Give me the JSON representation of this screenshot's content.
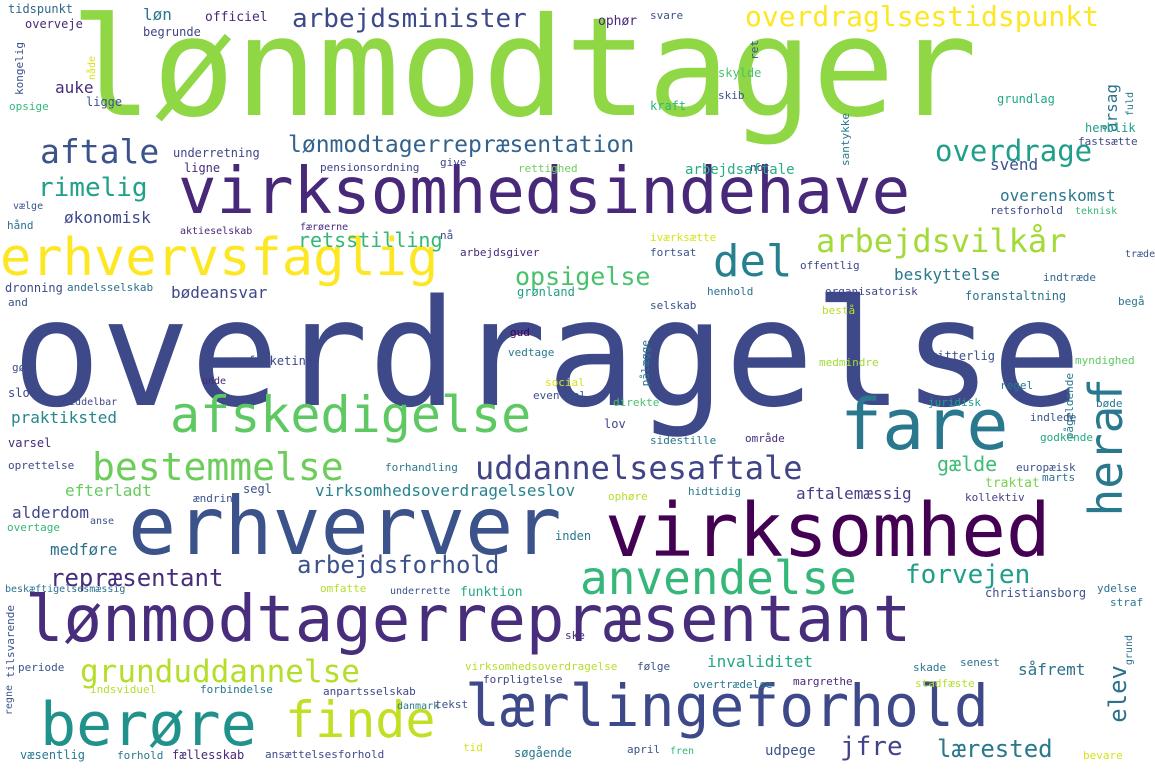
{
  "words": [
    {
      "text": "lønmodtager",
      "color": "#8fd744"
    },
    {
      "text": "overdragelse",
      "color": "#3e4989"
    },
    {
      "text": "virksomhedsindehave",
      "color": "#482878"
    },
    {
      "text": "lønmodtagerrepræsentant",
      "color": "#472d7b"
    },
    {
      "text": "erhverver",
      "color": "#3b528b"
    },
    {
      "text": "virksomhed",
      "color": "#440154"
    },
    {
      "text": "lærlingeforhold",
      "color": "#3e4989"
    },
    {
      "text": "erhvervsfaglig",
      "color": "#fde725"
    },
    {
      "text": "afskedigelse",
      "color": "#5ec962"
    },
    {
      "text": "berøre",
      "color": "#21918c"
    },
    {
      "text": "fare",
      "color": "#2a788e"
    },
    {
      "text": "finde",
      "color": "#c2df23"
    },
    {
      "text": "bestemmelse",
      "color": "#6ccd5a"
    },
    {
      "text": "anvendelse",
      "color": "#35b779"
    },
    {
      "text": "uddannelsesaftale",
      "color": "#414487"
    },
    {
      "text": "heraf",
      "color": "#2a788e"
    },
    {
      "text": "del",
      "color": "#27808e"
    },
    {
      "text": "arbejdsvilkår",
      "color": "#a2da37"
    },
    {
      "text": "overdraglsestidspunkt",
      "color": "#fde725"
    },
    {
      "text": "arbejdsminister",
      "color": "#3e4989"
    },
    {
      "text": "aftale",
      "color": "#3b528b"
    },
    {
      "text": "lønmodtagerrepræsentation",
      "color": "#33638d"
    },
    {
      "text": "overdrage",
      "color": "#1f9e89"
    },
    {
      "text": "rimelig",
      "color": "#1fa188"
    },
    {
      "text": "grunduddannelse",
      "color": "#b5de2b"
    },
    {
      "text": "repræsentant",
      "color": "#472c7a"
    },
    {
      "text": "arbejdsforhold",
      "color": "#3b528b"
    },
    {
      "text": "forvejen",
      "color": "#1f9e89"
    },
    {
      "text": "opsigelse",
      "color": "#4ac16d"
    },
    {
      "text": "retsstilling",
      "color": "#35b779"
    },
    {
      "text": "elev",
      "color": "#2d708e"
    },
    {
      "text": "jfre",
      "color": "#414487"
    },
    {
      "text": "lærested",
      "color": "#2a788e"
    },
    {
      "text": "invaliditet",
      "color": "#22a884"
    },
    {
      "text": "gælde",
      "color": "#3dbc74"
    },
    {
      "text": "aftalemæssig",
      "color": "#433e85"
    },
    {
      "text": "virksomhedsoverdragelseslov",
      "color": "#26828e"
    },
    {
      "text": "efterladt",
      "color": "#65cb5e"
    },
    {
      "text": "alderdom",
      "color": "#404688"
    },
    {
      "text": "medføre",
      "color": "#2c728e"
    },
    {
      "text": "praktiksted",
      "color": "#23888e"
    },
    {
      "text": "beskyttelse",
      "color": "#2a788e"
    },
    {
      "text": "bødeansvar",
      "color": "#404688"
    },
    {
      "text": "svend",
      "color": "#3b528b"
    },
    {
      "text": "overenskomst",
      "color": "#2a788e"
    },
    {
      "text": "økonomisk",
      "color": "#3e4989"
    },
    {
      "text": "arbejdsaftale",
      "color": "#27ad81"
    },
    {
      "text": "auke",
      "color": "#472d7b"
    },
    {
      "text": "løn",
      "color": "#2a788e"
    },
    {
      "text": "officiel",
      "color": "#482878"
    },
    {
      "text": "ophør",
      "color": "#482878"
    },
    {
      "text": "svare",
      "color": "#3b528b"
    },
    {
      "text": "tidspunkt",
      "color": "#31688e"
    },
    {
      "text": "overveje",
      "color": "#482878"
    },
    {
      "text": "begrunde",
      "color": "#414487"
    },
    {
      "text": "kongelig",
      "color": "#3b528b"
    },
    {
      "text": "nåde",
      "color": "#d8e219"
    },
    {
      "text": "opsige",
      "color": "#35b779"
    },
    {
      "text": "ligge",
      "color": "#3b528b"
    },
    {
      "text": "ret",
      "color": "#3b528b"
    },
    {
      "text": "skylde",
      "color": "#4ac16d"
    },
    {
      "text": "skib",
      "color": "#3b528b"
    },
    {
      "text": "kraft",
      "color": "#31b57b"
    },
    {
      "text": "årsag",
      "color": "#2c728e"
    },
    {
      "text": "fuld",
      "color": "#2a788e"
    },
    {
      "text": "grundlag",
      "color": "#22a884"
    },
    {
      "text": "henblik",
      "color": "#1f9e89"
    },
    {
      "text": "underretning",
      "color": "#404688"
    },
    {
      "text": "ligne",
      "color": "#472d7b"
    },
    {
      "text": "pensionsordning",
      "color": "#414487"
    },
    {
      "text": "give",
      "color": "#404688"
    },
    {
      "text": "rettighed",
      "color": "#6ccd5a"
    },
    {
      "text": "not",
      "color": "#3e4989"
    },
    {
      "text": "santykke",
      "color": "#2a788e"
    },
    {
      "text": "fastsætte",
      "color": "#3e4989"
    },
    {
      "text": "vælge",
      "color": "#3b528b"
    },
    {
      "text": "hånd",
      "color": "#2d708e"
    },
    {
      "text": "aktieselskab",
      "color": "#482878"
    },
    {
      "text": "færøerne",
      "color": "#472c7a"
    },
    {
      "text": "nå",
      "color": "#3b528b"
    },
    {
      "text": "iværksætte",
      "color": "#d8e219"
    },
    {
      "text": "arbejdsgiver",
      "color": "#482878"
    },
    {
      "text": "fortsat",
      "color": "#3b528b"
    },
    {
      "text": "retsforhold",
      "color": "#3e4989"
    },
    {
      "text": "teknisk",
      "color": "#35b779"
    },
    {
      "text": "træde",
      "color": "#3b528b"
    },
    {
      "text": "offentlig",
      "color": "#404688"
    },
    {
      "text": "indtræde",
      "color": "#31688e"
    },
    {
      "text": "dronning",
      "color": "#3e4989"
    },
    {
      "text": "andelsselskab",
      "color": "#2d708e"
    },
    {
      "text": "grønland",
      "color": "#1f9e89"
    },
    {
      "text": "selskab",
      "color": "#3b528b"
    },
    {
      "text": "henhold",
      "color": "#2d708e"
    },
    {
      "text": "organisatorisk",
      "color": "#414487"
    },
    {
      "text": "foranstaltning",
      "color": "#2c728e"
    },
    {
      "text": "begå",
      "color": "#2a788e"
    },
    {
      "text": "and",
      "color": "#3b528b"
    },
    {
      "text": "gud",
      "color": "#440154"
    },
    {
      "text": "bestå",
      "color": "#b5de2b"
    },
    {
      "text": "vedtage",
      "color": "#2a788e"
    },
    {
      "text": "folketing",
      "color": "#3e4989"
    },
    {
      "text": "pålægge",
      "color": "#2a788e"
    },
    {
      "text": "medmindre",
      "color": "#a2da37"
    },
    {
      "text": "vitterlig",
      "color": "#3b528b"
    },
    {
      "text": "myndighed",
      "color": "#5ec962"
    },
    {
      "text": "gø",
      "color": "#3b528b"
    },
    {
      "text": "unde",
      "color": "#482878"
    },
    {
      "text": "slot",
      "color": "#3e4989"
    },
    {
      "text": "umiddelbar",
      "color": "#404688"
    },
    {
      "text": "social",
      "color": "#d8e219"
    },
    {
      "text": "eventuel",
      "color": "#3b528b"
    },
    {
      "text": "direkte",
      "color": "#4ac16d"
    },
    {
      "text": "regel",
      "color": "#2a788e"
    },
    {
      "text": "pågældende",
      "color": "#2a788e"
    },
    {
      "text": "juridisk",
      "color": "#1f9e89"
    },
    {
      "text": "indlede",
      "color": "#3b528b"
    },
    {
      "text": "bøde",
      "color": "#2a788e"
    },
    {
      "text": "lov",
      "color": "#404688"
    },
    {
      "text": "sidestille",
      "color": "#2a788e"
    },
    {
      "text": "område",
      "color": "#472d7b"
    },
    {
      "text": "godkende",
      "color": "#22a884"
    },
    {
      "text": "varsel",
      "color": "#482878"
    },
    {
      "text": "oprettelse",
      "color": "#3e4989"
    },
    {
      "text": "segl",
      "color": "#3b528b"
    },
    {
      "text": "forhandling",
      "color": "#2a788e"
    },
    {
      "text": "europæisk",
      "color": "#3b528b"
    },
    {
      "text": "traktat",
      "color": "#7ad151"
    },
    {
      "text": "marts",
      "color": "#2c728e"
    },
    {
      "text": "kollektiv",
      "color": "#433e85"
    },
    {
      "text": "ændring",
      "color": "#3b528b"
    },
    {
      "text": "ophøre",
      "color": "#b5de2b"
    },
    {
      "text": "hidtidig",
      "color": "#2a788e"
    },
    {
      "text": "overtage",
      "color": "#35b779"
    },
    {
      "text": "anse",
      "color": "#3b528b"
    },
    {
      "text": "inden",
      "color": "#2a788e"
    },
    {
      "text": "beskæftigelsesmæssig",
      "color": "#2d708e"
    },
    {
      "text": "omfatte",
      "color": "#b5de2b"
    },
    {
      "text": "underrette",
      "color": "#3b528b"
    },
    {
      "text": "funktion",
      "color": "#22a884"
    },
    {
      "text": "christiansborg",
      "color": "#3b528b"
    },
    {
      "text": "ydelse",
      "color": "#2d708e"
    },
    {
      "text": "straf",
      "color": "#2a788e"
    },
    {
      "text": "tilsvarende",
      "color": "#3b528b"
    },
    {
      "text": "ske",
      "color": "#472d7b"
    },
    {
      "text": "grund",
      "color": "#2d708e"
    },
    {
      "text": "periode",
      "color": "#3b528b"
    },
    {
      "text": "virksomhedsoverdragelse",
      "color": "#b5de2b"
    },
    {
      "text": "følge",
      "color": "#3b528b"
    },
    {
      "text": "skade",
      "color": "#2a788e"
    },
    {
      "text": "senest",
      "color": "#2d708e"
    },
    {
      "text": "såfremt",
      "color": "#2d708e"
    },
    {
      "text": "indsviduel",
      "color": "#b5de2b"
    },
    {
      "text": "forbindelse",
      "color": "#2a788e"
    },
    {
      "text": "anpartsselskab",
      "color": "#3e4989"
    },
    {
      "text": "forpligtelse",
      "color": "#404688"
    },
    {
      "text": "margrethe",
      "color": "#482878"
    },
    {
      "text": "overtrædelse",
      "color": "#2a788e"
    },
    {
      "text": "stadfæste",
      "color": "#b5de2b"
    },
    {
      "text": "regne",
      "color": "#3b528b"
    },
    {
      "text": "danmark",
      "color": "#2a788e"
    },
    {
      "text": "tekst",
      "color": "#3b528b"
    },
    {
      "text": "væsentlig",
      "color": "#2a788e"
    },
    {
      "text": "forhold",
      "color": "#2a788e"
    },
    {
      "text": "fællesskab",
      "color": "#482878"
    },
    {
      "text": "ansættelsesforhold",
      "color": "#3e4989"
    },
    {
      "text": "tid",
      "color": "#d8e219"
    },
    {
      "text": "søgående",
      "color": "#2a788e"
    },
    {
      "text": "april",
      "color": "#3b528b"
    },
    {
      "text": "fren",
      "color": "#35b779"
    },
    {
      "text": "udpege",
      "color": "#3b528b"
    },
    {
      "text": "bevare",
      "color": "#d8e219"
    }
  ]
}
